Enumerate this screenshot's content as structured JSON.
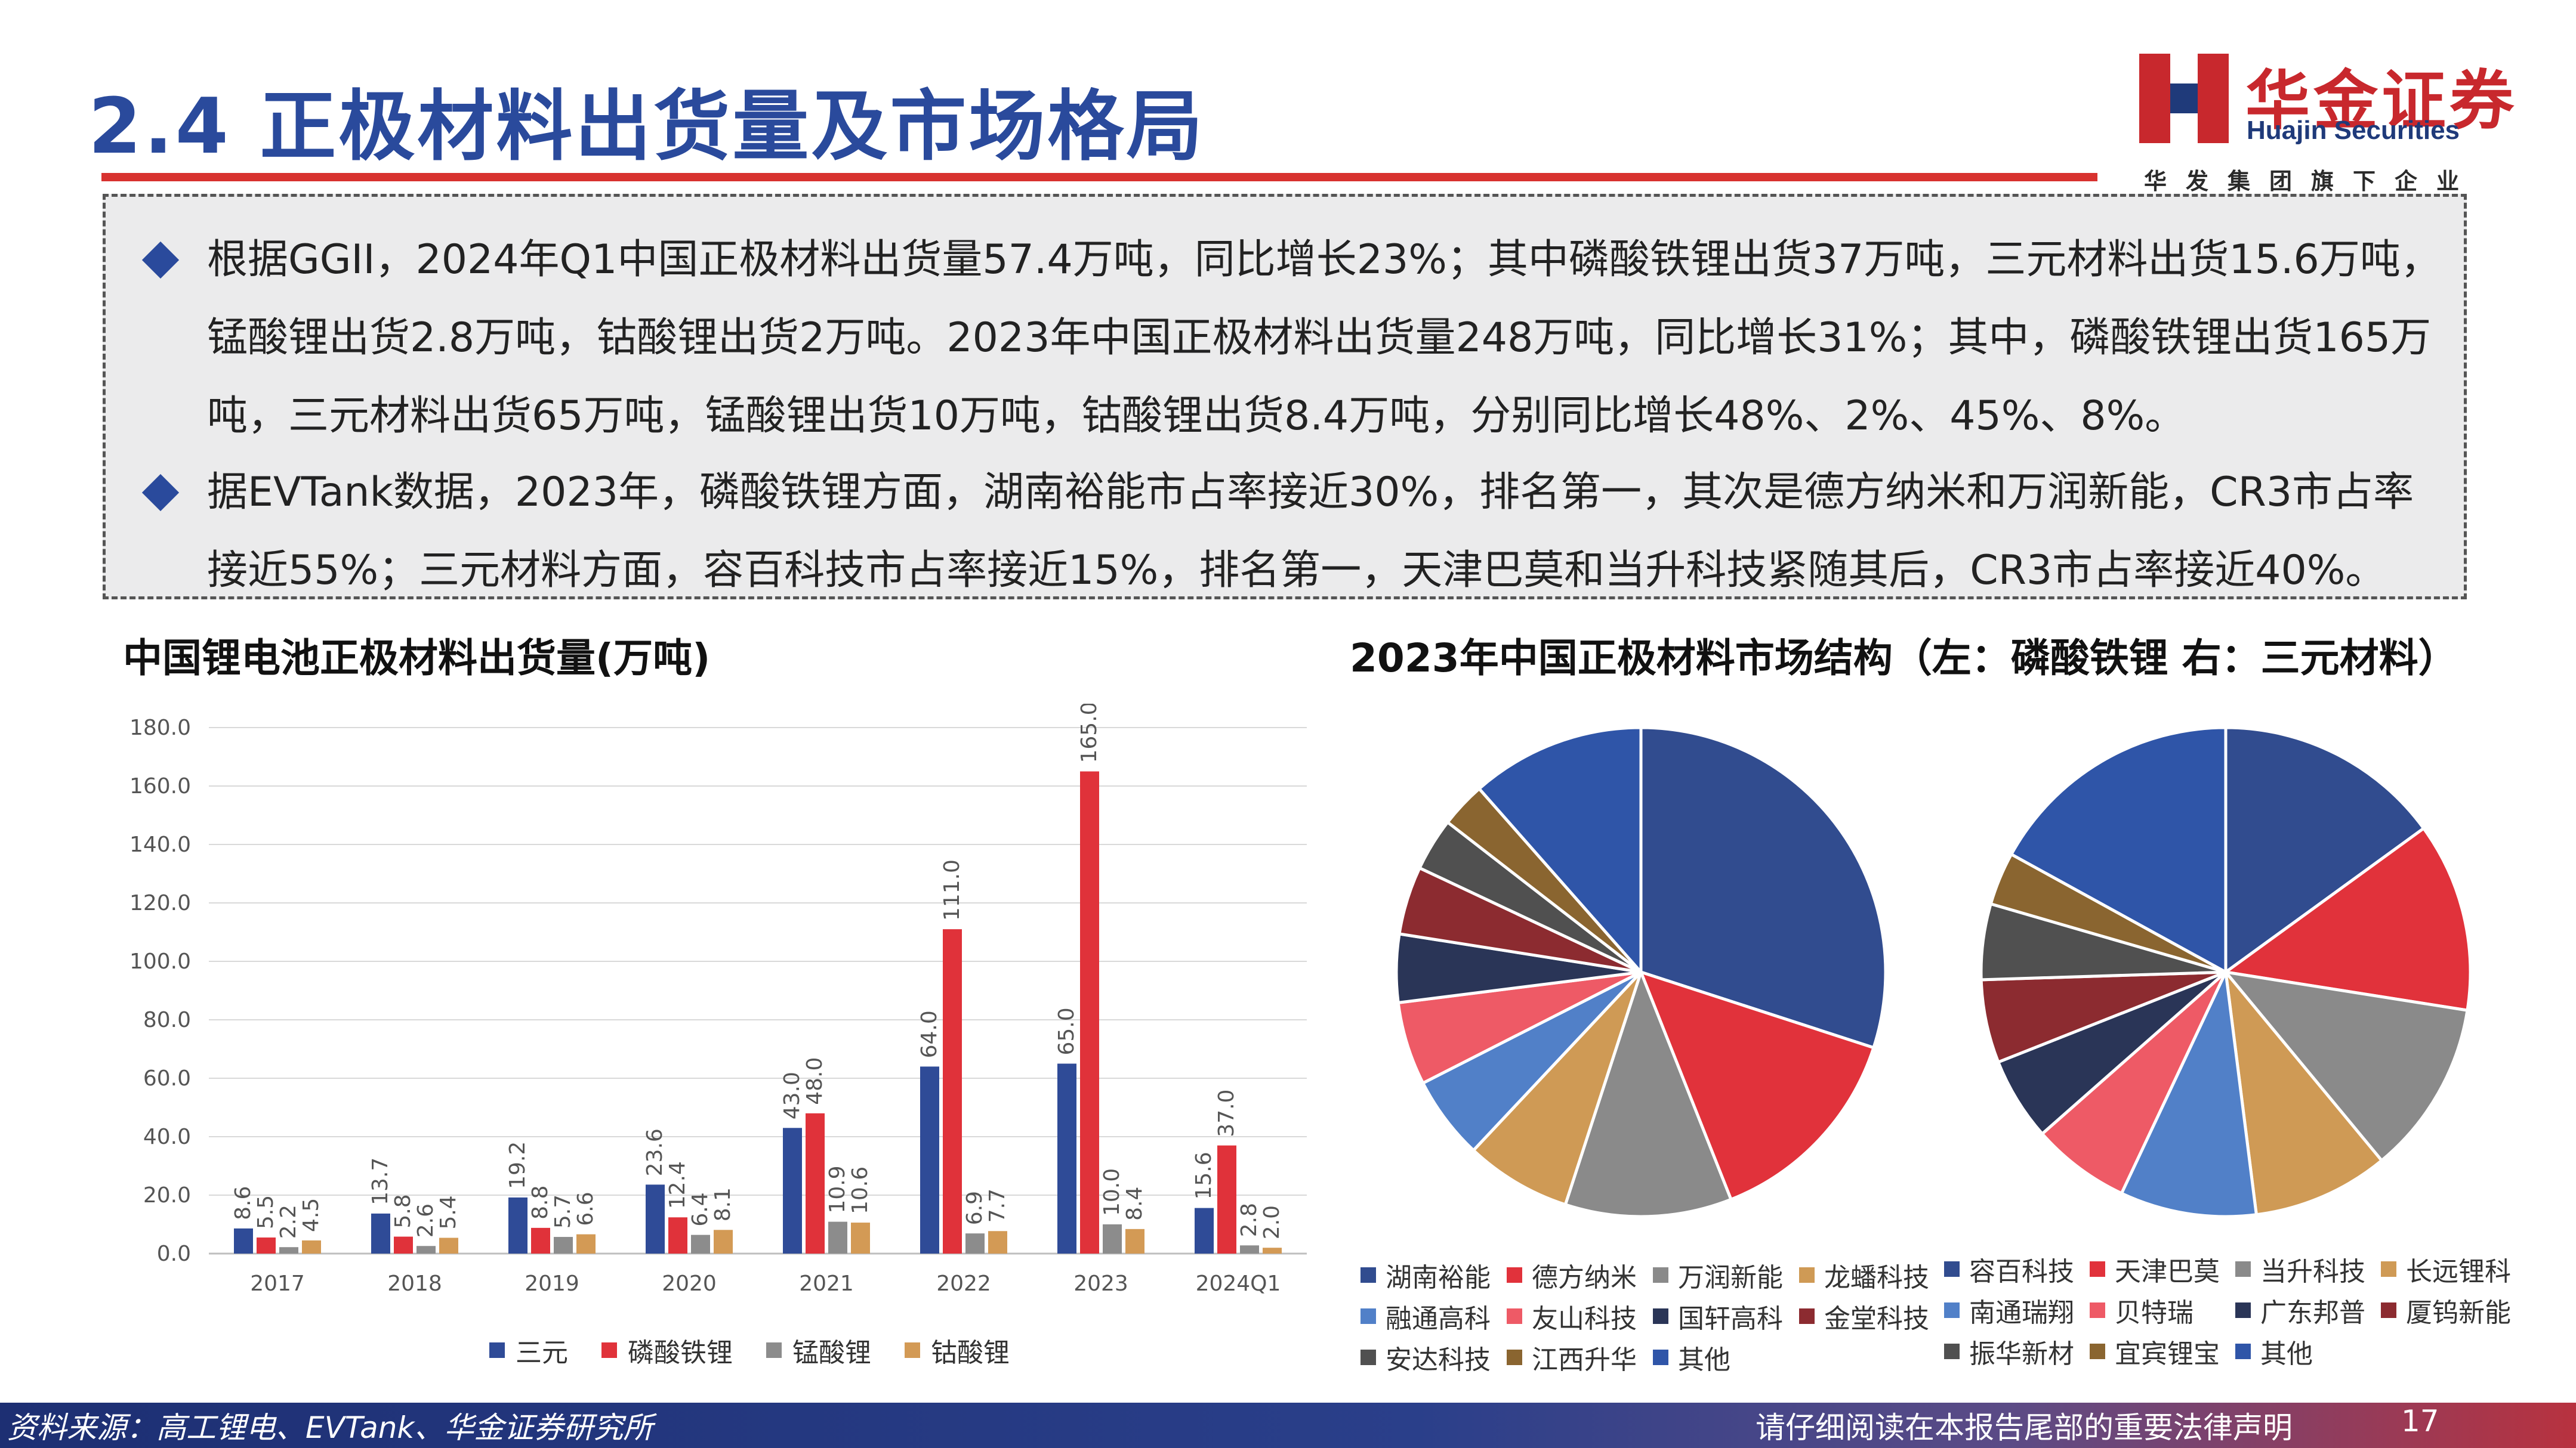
{
  "header": {
    "title": "2.4 正极材料出货量及市场格局",
    "logo_cn": "华金证券",
    "logo_en": "Huajin Securities",
    "logo_sub": "华发集团旗下企业"
  },
  "summary": {
    "bullets": [
      "根据GGII，2024年Q1中国正极材料出货量57.4万吨，同比增长23%；其中磷酸铁锂出货37万吨，三元材料出货15.6万吨，锰酸锂出货2.8万吨，钴酸锂出货2万吨。2023年中国正极材料出货量248万吨，同比增长31%；其中，磷酸铁锂出货165万吨，三元材料出货65万吨，锰酸锂出货10万吨，钴酸锂出货8.4万吨，分别同比增长48%、2%、45%、8%。",
      "据EVTank数据，2023年，磷酸铁锂方面，湖南裕能市占率接近30%，排名第一，其次是德方纳米和万润新能，CR3市占率接近55%；三元材料方面，容百科技市占率接近15%，排名第一，天津巴莫和当升科技紧随其后，CR3市占率接近40%。"
    ]
  },
  "bar_chart_title": "中国锂电池正极材料出货量(万吨)",
  "pie_chart_title": "2023年中国正极材料市场结构（左：磷酸铁锂 右：三元材料）",
  "chart_data": [
    {
      "type": "bar",
      "title": "中国锂电池正极材料出货量(万吨)",
      "categories": [
        "2017",
        "2018",
        "2019",
        "2020",
        "2021",
        "2022",
        "2023",
        "2024Q1"
      ],
      "ylim": [
        0,
        180
      ],
      "yticks": [
        "0.0",
        "20.0",
        "40.0",
        "60.0",
        "80.0",
        "100.0",
        "120.0",
        "140.0",
        "160.0",
        "180.0"
      ],
      "series": [
        {
          "name": "三元",
          "color": "#2f4b97",
          "values": [
            8.6,
            13.7,
            19.2,
            23.6,
            43.0,
            64.0,
            65.0,
            15.6
          ],
          "labels": [
            "8.6",
            "13.7",
            "19.2",
            "23.6",
            "43.0",
            "64.0",
            "65.0",
            "15.6"
          ]
        },
        {
          "name": "磷酸铁锂",
          "color": "#e0323a",
          "values": [
            5.5,
            5.8,
            8.8,
            12.4,
            48.0,
            111.0,
            165.0,
            37.0
          ],
          "labels": [
            "5.5",
            "5.8",
            "8.8",
            "12.4",
            "48.0",
            "111.0",
            "165.0",
            "37.0"
          ]
        },
        {
          "name": "锰酸锂",
          "color": "#8c8c8c",
          "values": [
            2.2,
            2.6,
            5.7,
            6.4,
            10.9,
            6.9,
            10.0,
            2.8
          ],
          "labels": [
            "2.2",
            "2.6",
            "5.7",
            "6.4",
            "10.9",
            "6.9",
            "10.0",
            "2.8"
          ]
        },
        {
          "name": "钴酸锂",
          "color": "#d39a55",
          "values": [
            4.5,
            5.4,
            6.6,
            8.1,
            10.6,
            7.7,
            8.4,
            2.0
          ],
          "labels": [
            "4.5",
            "5.4",
            "6.6",
            "8.1",
            "10.6",
            "7.7",
            "8.4",
            "2.0"
          ]
        }
      ]
    },
    {
      "type": "pie",
      "title": "磷酸铁锂",
      "slices": [
        {
          "name": "湖南裕能",
          "value": 30,
          "color": "#314c8f"
        },
        {
          "name": "德方纳米",
          "value": 14,
          "color": "#e1323b"
        },
        {
          "name": "万润新能",
          "value": 11,
          "color": "#8a8a8a"
        },
        {
          "name": "龙蟠科技",
          "value": 7,
          "color": "#cf9a55"
        },
        {
          "name": "融通高科",
          "value": 5.5,
          "color": "#5180c8"
        },
        {
          "name": "友山科技",
          "value": 5.5,
          "color": "#ee5a66"
        },
        {
          "name": "国轩高科",
          "value": 4.5,
          "color": "#2a3557"
        },
        {
          "name": "金堂科技",
          "value": 4.5,
          "color": "#8c2b30"
        },
        {
          "name": "安达科技",
          "value": 3.5,
          "color": "#505050"
        },
        {
          "name": "江西升华",
          "value": 3,
          "color": "#8a6530"
        },
        {
          "name": "其他",
          "value": 11.5,
          "color": "#2f55a8"
        }
      ]
    },
    {
      "type": "pie",
      "title": "三元材料",
      "slices": [
        {
          "name": "容百科技",
          "value": 15,
          "color": "#314c8f"
        },
        {
          "name": "天津巴莫",
          "value": 12.5,
          "color": "#e1323b"
        },
        {
          "name": "当升科技",
          "value": 11.5,
          "color": "#8a8a8a"
        },
        {
          "name": "长远锂科",
          "value": 9,
          "color": "#cf9a55"
        },
        {
          "name": "南通瑞翔",
          "value": 9,
          "color": "#5180c8"
        },
        {
          "name": "贝特瑞",
          "value": 6.5,
          "color": "#ee5a66"
        },
        {
          "name": "广东邦普",
          "value": 5.5,
          "color": "#2a3557"
        },
        {
          "name": "厦钨新能",
          "value": 5.5,
          "color": "#8c2b30"
        },
        {
          "name": "振华新材",
          "value": 5,
          "color": "#505050"
        },
        {
          "name": "宜宾锂宝",
          "value": 3.5,
          "color": "#8a6530"
        },
        {
          "name": "其他",
          "value": 17,
          "color": "#2f55a8"
        }
      ]
    }
  ],
  "footer": {
    "source": "资料来源：高工锂电、EVTank、华金证券研究所",
    "notice": "请仔细阅读在本报告尾部的重要法律声明",
    "page": "17"
  }
}
